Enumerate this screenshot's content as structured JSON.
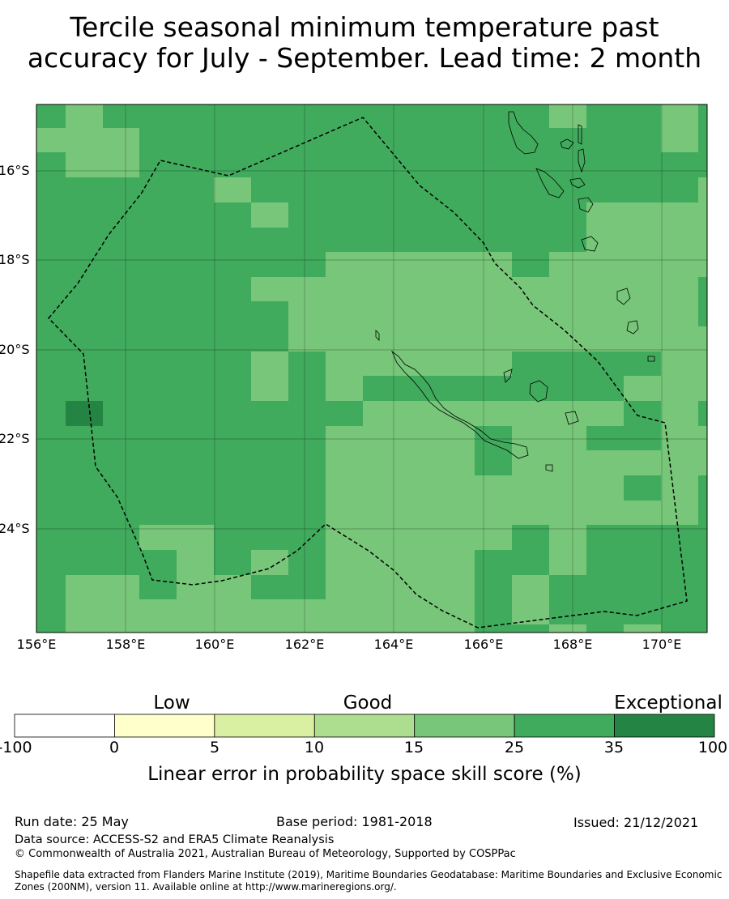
{
  "title": {
    "line1": "Tercile seasonal minimum temperature past",
    "line2": "accuracy for July - September. Lead time: 2 month"
  },
  "map": {
    "lon_labels": [
      "156°E",
      "158°E",
      "160°E",
      "162°E",
      "164°E",
      "166°E",
      "168°E",
      "170°E"
    ],
    "lat_labels": [
      "16°S",
      "18°S",
      "20°S",
      "22°S",
      "24°S"
    ],
    "lon_range": [
      156,
      171
    ],
    "lat_range": [
      -14.5,
      -26.3
    ],
    "grid": true,
    "boundary": "dashed EEZ line (New Caledonia)",
    "cell_colors": {
      "1": "#78c679",
      "2": "#41ab5d",
      "3": "#238443"
    },
    "cells_note": "grid rows of skill category codes (1 = 15-25, 2 = 25-35, 3 = 35-100)"
  },
  "legend": {
    "category_labels": [
      "Low",
      "Good",
      "Exceptional"
    ],
    "tick_labels": [
      "-100",
      "0",
      "5",
      "10",
      "15",
      "25",
      "35",
      "100"
    ],
    "colors": [
      "#ffffff",
      "#ffffcc",
      "#d9f0a3",
      "#addd8e",
      "#78c679",
      "#41ab5d",
      "#238443"
    ],
    "title": "Linear error in probability space skill score (%)"
  },
  "footer": {
    "run_date": "Run date: 25 May",
    "base_period": "Base period: 1981-2018",
    "issued": "Issued: 21/12/2021",
    "data_source": "Data source: ACCESS-S2 and ERA5 Climate Reanalysis",
    "copyright": "© Commonwealth of Australia 2021, Australian Bureau of Meteorology, Supported by COSPPac",
    "shapefile": "Shapefile data extracted from Flanders Marine Institute (2019), Maritime Boundaries Geodatabase: Maritime Boundaries and Exclusive Economic Zones (200NM), version 11. Available online at http://www.marineregions.org/."
  }
}
